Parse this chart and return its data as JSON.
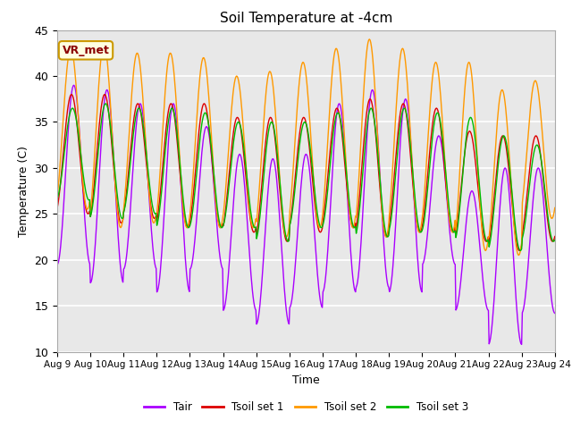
{
  "title": "Soil Temperature at -4cm",
  "xlabel": "Time",
  "ylabel": "Temperature (C)",
  "ylim": [
    10,
    45
  ],
  "yticks": [
    10,
    15,
    20,
    25,
    30,
    35,
    40,
    45
  ],
  "xtick_labels": [
    "Aug 9",
    "Aug 10",
    "Aug 11",
    "Aug 12",
    "Aug 13",
    "Aug 14",
    "Aug 15",
    "Aug 16",
    "Aug 17",
    "Aug 18",
    "Aug 19",
    "Aug 20",
    "Aug 21",
    "Aug 22",
    "Aug 23",
    "Aug 24"
  ],
  "colors": {
    "Tair": "#aa00ff",
    "Tsoil set 1": "#dd0000",
    "Tsoil set 2": "#ff9900",
    "Tsoil set 3": "#00bb00"
  },
  "annotation_text": "VR_met",
  "annotation_color": "#8B0000",
  "annotation_bg": "#ffffe0",
  "annotation_edge": "#cc9900",
  "plot_bg": "#e8e8e8",
  "fig_bg": "#ffffff",
  "grid_color": "#ffffff",
  "tair_mins": [
    19.5,
    17.5,
    19.0,
    16.5,
    19.0,
    14.5,
    13.0,
    14.8,
    16.5,
    17.0,
    16.5,
    19.5,
    14.5,
    10.8,
    14.2
  ],
  "tair_maxs": [
    39.0,
    38.5,
    37.0,
    37.0,
    34.5,
    31.5,
    31.0,
    31.5,
    37.0,
    38.5,
    37.5,
    33.5,
    27.5,
    30.0,
    30.0
  ],
  "ts1_mins": [
    25.0,
    24.0,
    24.5,
    23.5,
    23.5,
    23.0,
    22.0,
    23.0,
    23.5,
    22.5,
    23.0,
    23.0,
    22.0,
    21.0,
    22.0
  ],
  "ts1_maxs": [
    38.0,
    38.0,
    37.0,
    37.0,
    37.0,
    35.5,
    35.5,
    35.5,
    36.5,
    37.5,
    37.0,
    36.5,
    34.0,
    33.5,
    33.5
  ],
  "ts2_mins": [
    25.5,
    23.5,
    24.0,
    23.5,
    23.5,
    23.5,
    22.5,
    23.5,
    23.5,
    22.5,
    23.0,
    23.0,
    21.0,
    20.5,
    24.5
  ],
  "ts2_maxs": [
    43.0,
    43.5,
    42.5,
    42.5,
    42.0,
    40.0,
    40.5,
    41.5,
    43.0,
    44.0,
    43.0,
    41.5,
    41.5,
    38.5,
    39.5
  ],
  "ts3_mins": [
    26.5,
    24.5,
    25.0,
    23.5,
    23.5,
    23.5,
    22.0,
    23.5,
    23.5,
    22.5,
    23.0,
    23.0,
    22.0,
    21.0,
    22.0
  ],
  "ts3_maxs": [
    36.5,
    37.0,
    36.5,
    36.5,
    36.0,
    35.0,
    35.0,
    35.0,
    36.0,
    36.5,
    36.5,
    36.0,
    35.5,
    33.5,
    32.5
  ]
}
